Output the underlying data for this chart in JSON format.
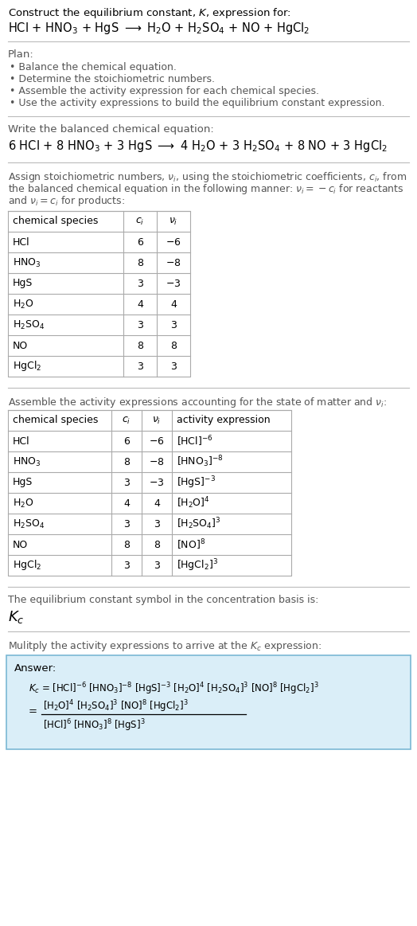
{
  "title_line1": "Construct the equilibrium constant, $K$, expression for:",
  "title_line2": "HCl + HNO$_3$ + HgS $\\longrightarrow$ H$_2$O + H$_2$SO$_4$ + NO + HgCl$_2$",
  "plan_header": "Plan:",
  "plan_items": [
    "Balance the chemical equation.",
    "Determine the stoichiometric numbers.",
    "Assemble the activity expression for each chemical species.",
    "Use the activity expressions to build the equilibrium constant expression."
  ],
  "balanced_header": "Write the balanced chemical equation:",
  "balanced_eq": "6 HCl + 8 HNO$_3$ + 3 HgS $\\longrightarrow$ 4 H$_2$O + 3 H$_2$SO$_4$ + 8 NO + 3 HgCl$_2$",
  "stoich_intro_lines": [
    "Assign stoichiometric numbers, $\\nu_i$, using the stoichiometric coefficients, $c_i$, from",
    "the balanced chemical equation in the following manner: $\\nu_i = -c_i$ for reactants",
    "and $\\nu_i = c_i$ for products:"
  ],
  "table1_headers": [
    "chemical species",
    "$c_i$",
    "$\\nu_i$"
  ],
  "table1_rows": [
    [
      "HCl",
      "6",
      "$-6$"
    ],
    [
      "HNO$_3$",
      "8",
      "$-8$"
    ],
    [
      "HgS",
      "3",
      "$-3$"
    ],
    [
      "H$_2$O",
      "4",
      "4"
    ],
    [
      "H$_2$SO$_4$",
      "3",
      "3"
    ],
    [
      "NO",
      "8",
      "8"
    ],
    [
      "HgCl$_2$",
      "3",
      "3"
    ]
  ],
  "activity_intro": "Assemble the activity expressions accounting for the state of matter and $\\nu_i$:",
  "table2_headers": [
    "chemical species",
    "$c_i$",
    "$\\nu_i$",
    "activity expression"
  ],
  "table2_rows": [
    [
      "HCl",
      "6",
      "$-6$",
      "[HCl]$^{-6}$"
    ],
    [
      "HNO$_3$",
      "8",
      "$-8$",
      "[HNO$_3$]$^{-8}$"
    ],
    [
      "HgS",
      "3",
      "$-3$",
      "[HgS]$^{-3}$"
    ],
    [
      "H$_2$O",
      "4",
      "4",
      "[H$_2$O]$^4$"
    ],
    [
      "H$_2$SO$_4$",
      "3",
      "3",
      "[H$_2$SO$_4$]$^3$"
    ],
    [
      "NO",
      "8",
      "8",
      "[NO]$^8$"
    ],
    [
      "HgCl$_2$",
      "3",
      "3",
      "[HgCl$_2$]$^3$"
    ]
  ],
  "kc_intro": "The equilibrium constant symbol in the concentration basis is:",
  "kc_symbol": "$K_c$",
  "multiply_intro": "Mulitply the activity expressions to arrive at the $K_c$ expression:",
  "answer_label": "Answer:",
  "kc_line1": "$K_c$ = [HCl]$^{-6}$ [HNO$_3$]$^{-8}$ [HgS]$^{-3}$ [H$_2$O]$^4$ [H$_2$SO$_4$]$^3$ [NO]$^8$ [HgCl$_2$]$^3$",
  "kc_line2_num": "[H$_2$O]$^4$ [H$_2$SO$_4$]$^3$ [NO]$^8$ [HgCl$_2$]$^3$",
  "kc_line2_den": "[HCl]$^6$ [HNO$_3$]$^8$ [HgS]$^3$",
  "bg_color": "#ffffff",
  "answer_box_edge": "#7ab8d4",
  "answer_box_face": "#daeef8",
  "text_color": "#000000",
  "gray_text": "#555555",
  "table_line_color": "#aaaaaa",
  "divider_color": "#bbbbbb"
}
